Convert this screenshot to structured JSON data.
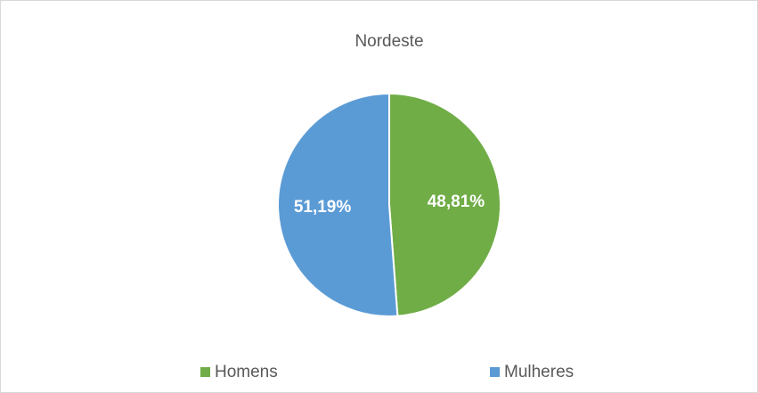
{
  "chart_data": {
    "type": "pie",
    "title": "Nordeste",
    "categories": [
      "Homens",
      "Mulheres"
    ],
    "values": [
      48.81,
      51.19
    ],
    "value_labels": [
      "48,81%",
      "51,19%"
    ],
    "colors": [
      "#70ad47",
      "#5b9bd5"
    ],
    "legend": "bottom"
  }
}
